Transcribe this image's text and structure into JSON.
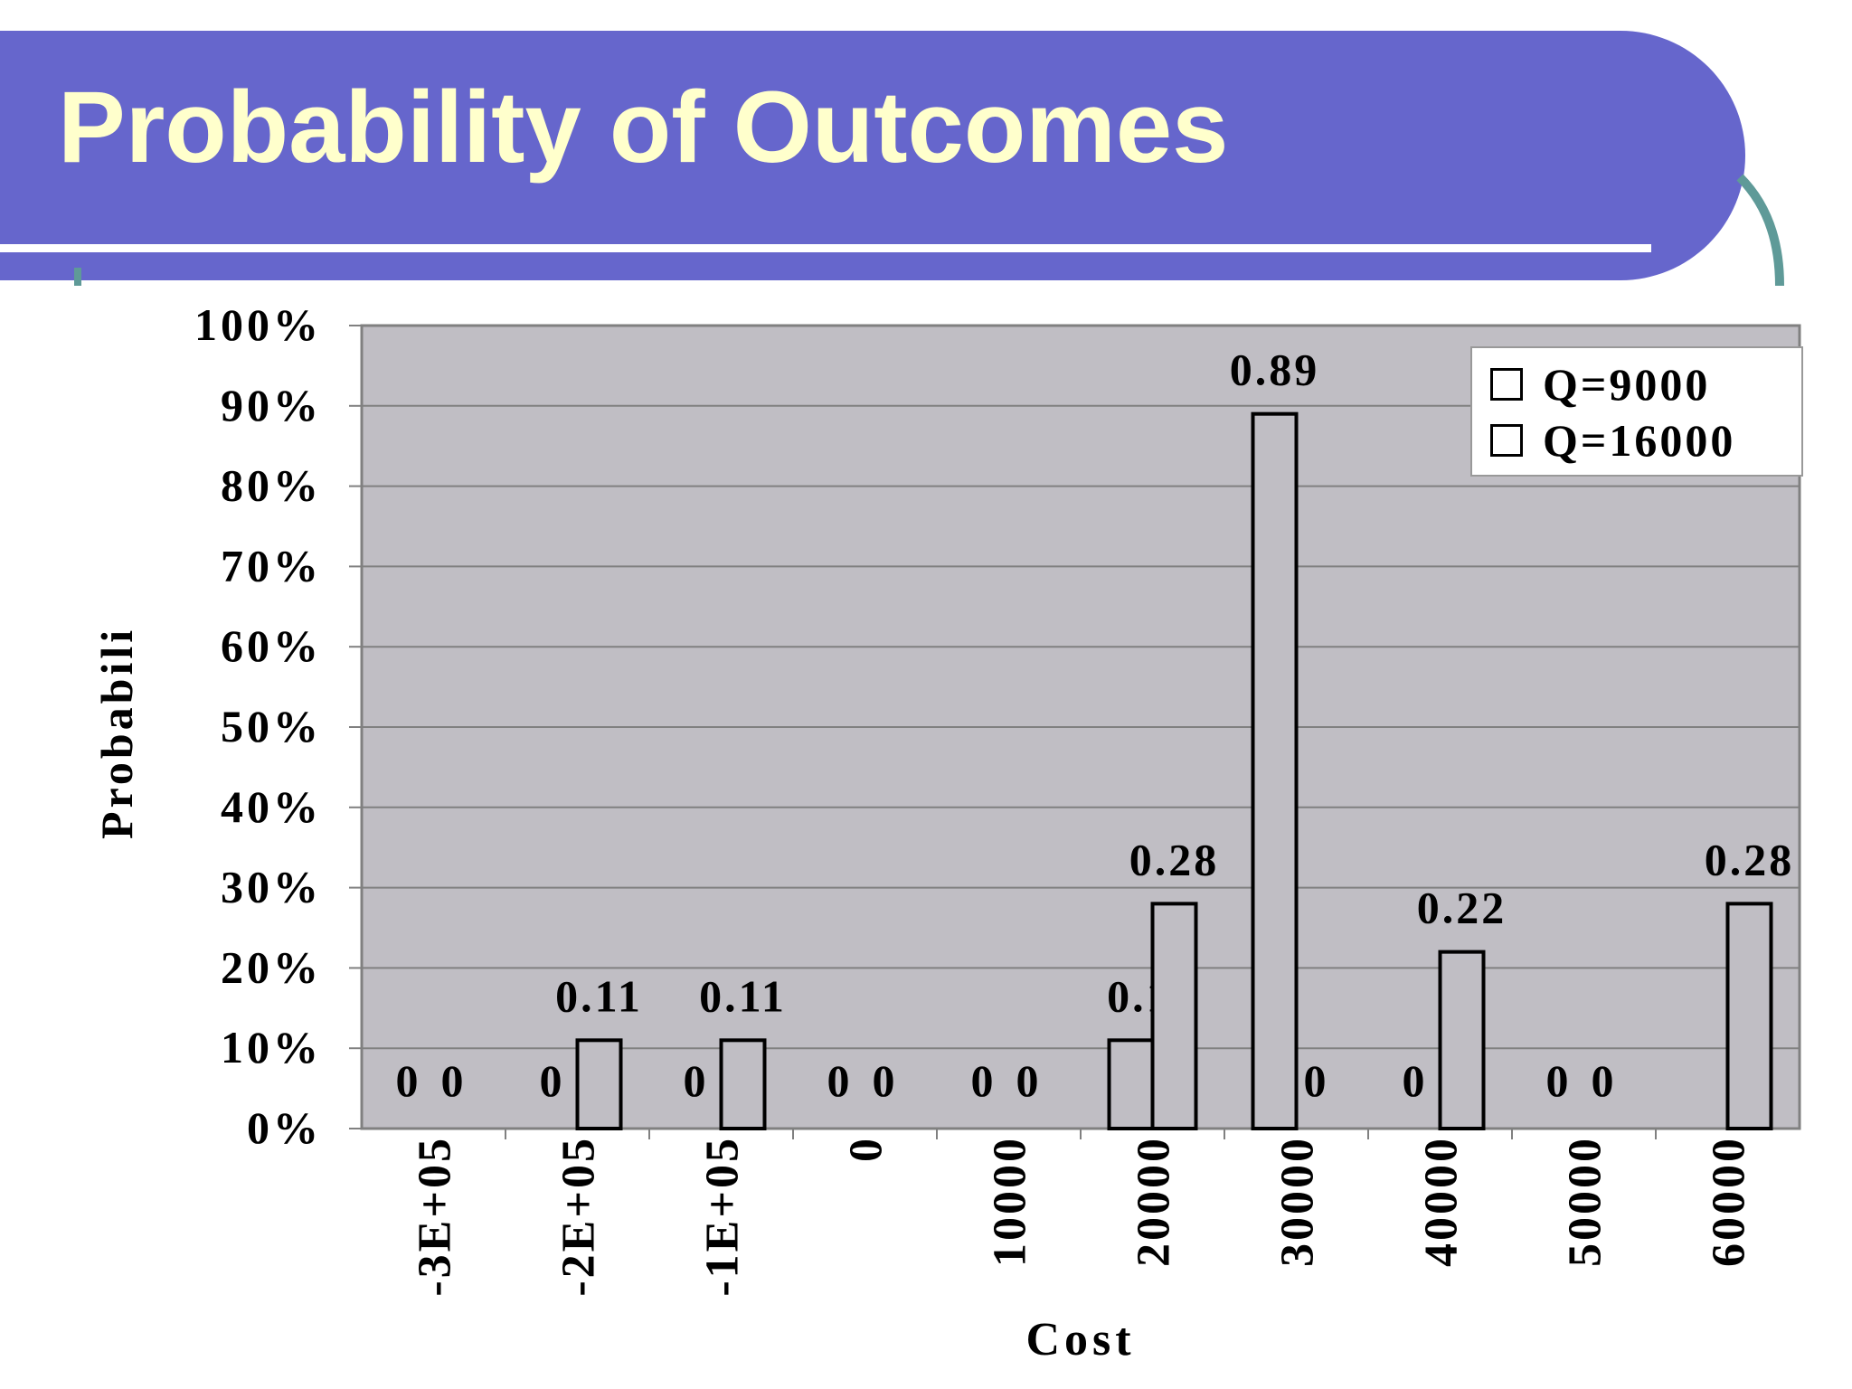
{
  "slide": {
    "title": "Probability of Outcomes"
  },
  "chart_data": {
    "type": "bar",
    "categories": [
      "-3E+05",
      "-2E+05",
      "-1E+05",
      "0",
      "10000",
      "20000",
      "30000",
      "40000",
      "50000",
      "60000"
    ],
    "series": [
      {
        "name": "Q=9000",
        "values": [
          0,
          0,
          0,
          0,
          0,
          0.11,
          0.89,
          0,
          0,
          0
        ]
      },
      {
        "name": "Q=16000",
        "values": [
          0,
          0.11,
          0.11,
          0,
          0,
          0.28,
          0,
          0.22,
          0,
          0.28
        ]
      }
    ],
    "data_labels": [
      [
        "0",
        "0",
        "0",
        "0",
        "0",
        "0.11",
        "0.89",
        "0",
        "0",
        ""
      ],
      [
        "0",
        "0.11",
        "0.11",
        "0",
        "0",
        "0.28",
        "0",
        "0.22",
        "0",
        "0.28"
      ]
    ],
    "yticks": [
      "0%",
      "10%",
      "20%",
      "30%",
      "40%",
      "50%",
      "60%",
      "70%",
      "80%",
      "90%",
      "100%"
    ],
    "xlabel": "Cost",
    "ylabel": "Probabili",
    "ylim": [
      0,
      1
    ],
    "grid": true,
    "legend_position": "top-right",
    "colors": {
      "plot_bg": "#c0bec4",
      "bar_fill": "#c0bec4",
      "bar_stroke": "#000000",
      "grid": "#808080",
      "header_bg": "#6666cc",
      "title_color": "#ffffcc",
      "accent_teal": "#5f9a98"
    }
  }
}
